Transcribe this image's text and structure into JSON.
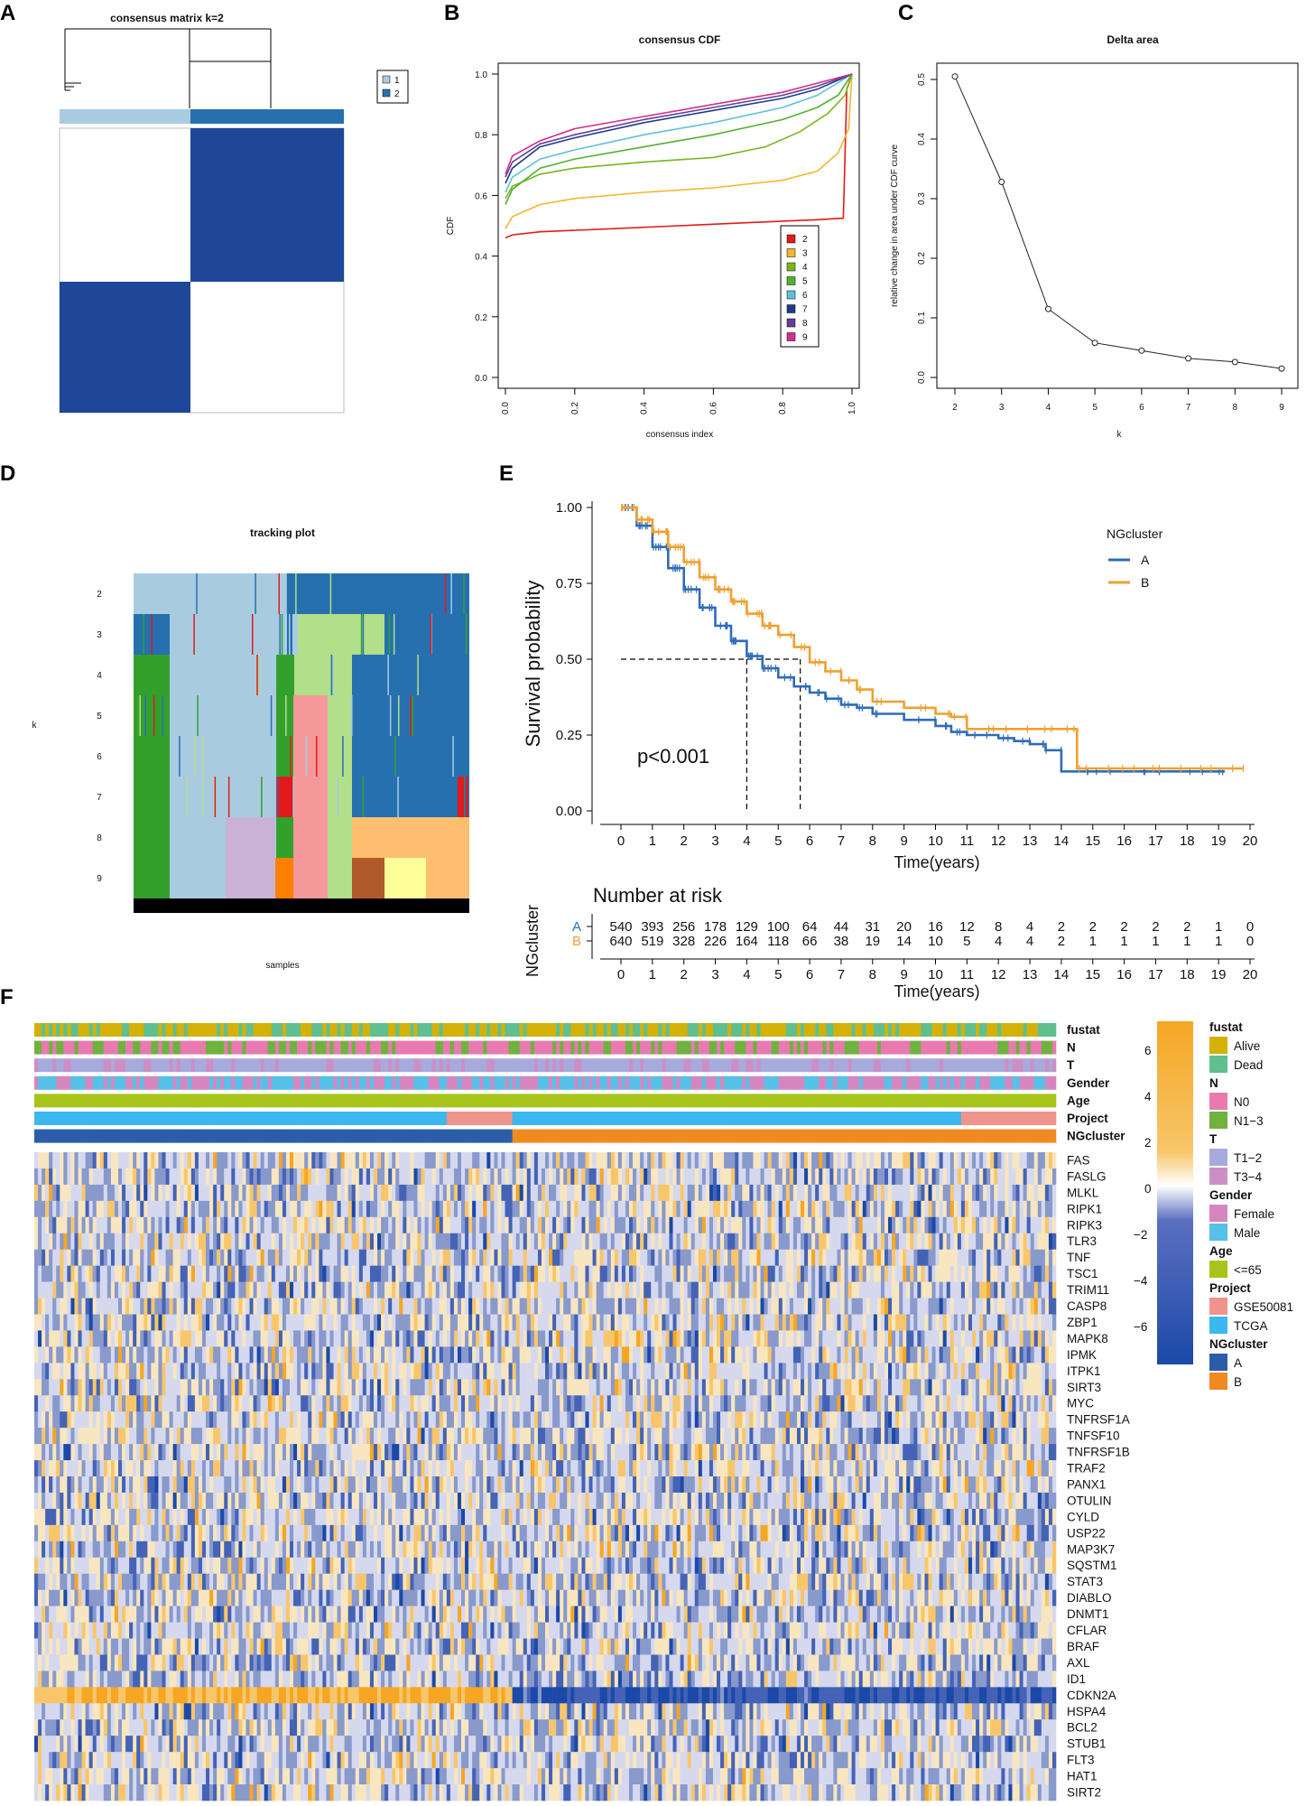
{
  "panels": {
    "A": "A",
    "B": "B",
    "C": "C",
    "D": "D",
    "E": "E",
    "F": "F"
  },
  "colors": {
    "dark_blue": "#1e4799",
    "light_blue": "#a9cbe0",
    "mid_blue": "#2670b0",
    "orange": "#f0a030",
    "blue_km": "#2f6cb8"
  },
  "chart_data": [
    {
      "panel": "A",
      "type": "heatmap",
      "title": "consensus matrix k=2",
      "legend": [
        {
          "label": "1",
          "color": "#a9cbe0"
        },
        {
          "label": "2",
          "color": "#2670b0"
        }
      ],
      "matrix": [
        [
          0,
          1
        ],
        [
          1,
          0
        ]
      ],
      "cluster_fraction": [
        0.46,
        0.54
      ]
    },
    {
      "panel": "B",
      "type": "line",
      "title": "consensus CDF",
      "xlabel": "consensus index",
      "ylabel": "CDF",
      "xlim": [
        0,
        1
      ],
      "ylim": [
        0,
        1
      ],
      "xticks": [
        "0.0",
        "0.2",
        "0.4",
        "0.6",
        "0.8",
        "1.0"
      ],
      "yticks": [
        "0.0",
        "0.2",
        "0.4",
        "0.6",
        "0.8",
        "1.0"
      ],
      "series": [
        {
          "name": "2",
          "color": "#e41a1c",
          "x": [
            0,
            0.02,
            0.1,
            0.3,
            0.5,
            0.7,
            0.9,
            0.975,
            0.985,
            1.0
          ],
          "y": [
            0.46,
            0.47,
            0.48,
            0.49,
            0.5,
            0.51,
            0.52,
            0.525,
            0.95,
            1.0
          ]
        },
        {
          "name": "3",
          "color": "#f2b630",
          "x": [
            0,
            0.02,
            0.1,
            0.2,
            0.4,
            0.6,
            0.8,
            0.9,
            0.96,
            0.99,
            1.0
          ],
          "y": [
            0.49,
            0.53,
            0.57,
            0.59,
            0.61,
            0.625,
            0.65,
            0.68,
            0.74,
            0.82,
            1.0
          ]
        },
        {
          "name": "4",
          "color": "#7cb420",
          "x": [
            0,
            0.02,
            0.1,
            0.2,
            0.4,
            0.6,
            0.75,
            0.85,
            0.93,
            0.98,
            1.0
          ],
          "y": [
            0.59,
            0.63,
            0.67,
            0.69,
            0.71,
            0.725,
            0.76,
            0.81,
            0.87,
            0.93,
            1.0
          ]
        },
        {
          "name": "5",
          "color": "#55b030",
          "x": [
            0,
            0.02,
            0.1,
            0.2,
            0.4,
            0.6,
            0.8,
            0.9,
            0.96,
            1.0
          ],
          "y": [
            0.57,
            0.62,
            0.69,
            0.72,
            0.76,
            0.8,
            0.85,
            0.89,
            0.93,
            1.0
          ]
        },
        {
          "name": "6",
          "color": "#60c0d8",
          "x": [
            0,
            0.02,
            0.1,
            0.2,
            0.4,
            0.6,
            0.8,
            0.9,
            1.0
          ],
          "y": [
            0.61,
            0.66,
            0.72,
            0.75,
            0.8,
            0.84,
            0.89,
            0.93,
            1.0
          ]
        },
        {
          "name": "7",
          "color": "#1e3c8c",
          "x": [
            0,
            0.02,
            0.1,
            0.2,
            0.4,
            0.6,
            0.8,
            0.9,
            1.0
          ],
          "y": [
            0.64,
            0.69,
            0.76,
            0.79,
            0.84,
            0.88,
            0.92,
            0.95,
            1.0
          ]
        },
        {
          "name": "8",
          "color": "#6a3d9a",
          "x": [
            0,
            0.02,
            0.1,
            0.2,
            0.4,
            0.6,
            0.8,
            0.9,
            1.0
          ],
          "y": [
            0.66,
            0.71,
            0.77,
            0.8,
            0.85,
            0.89,
            0.93,
            0.96,
            1.0
          ]
        },
        {
          "name": "9",
          "color": "#d0308c",
          "x": [
            0,
            0.02,
            0.1,
            0.2,
            0.4,
            0.6,
            0.8,
            0.9,
            1.0
          ],
          "y": [
            0.67,
            0.73,
            0.78,
            0.82,
            0.86,
            0.9,
            0.94,
            0.97,
            1.0
          ]
        }
      ]
    },
    {
      "panel": "C",
      "type": "line",
      "title": "Delta area",
      "xlabel": "k",
      "ylabel": "relative change in area under CDF curve",
      "x": [
        2,
        3,
        4,
        5,
        6,
        7,
        8,
        9
      ],
      "values": [
        0.505,
        0.328,
        0.115,
        0.058,
        0.045,
        0.032,
        0.026,
        0.015
      ],
      "ylim": [
        0,
        0.5
      ],
      "yticks": [
        "0.0",
        "0.1",
        "0.2",
        "0.3",
        "0.4",
        "0.5"
      ],
      "xticks": [
        "2",
        "3",
        "4",
        "5",
        "6",
        "7",
        "8",
        "9"
      ]
    },
    {
      "panel": "D",
      "type": "heatmap",
      "title": "tracking plot",
      "xlabel": "samples",
      "ylabel": "k",
      "rows": [
        "2",
        "3",
        "4",
        "5",
        "6",
        "7",
        "8",
        "9"
      ]
    },
    {
      "panel": "E",
      "type": "line",
      "title": "",
      "xlabel": "Time(years)",
      "ylabel": "Survival probability",
      "legend_title": "NGcluster",
      "p_value": "p<0.001",
      "xlim": [
        0,
        20
      ],
      "ylim": [
        0,
        1
      ],
      "xticks": [
        "0",
        "1",
        "2",
        "3",
        "4",
        "5",
        "6",
        "7",
        "8",
        "9",
        "10",
        "11",
        "12",
        "13",
        "14",
        "15",
        "16",
        "17",
        "18",
        "19",
        "20"
      ],
      "yticks": [
        "0.00",
        "0.25",
        "0.50",
        "0.75",
        "1.00"
      ],
      "median_survival": {
        "A": 4.0,
        "B": 5.7
      },
      "series": [
        {
          "name": "A",
          "color": "#2f6cb8",
          "x": [
            0,
            0.5,
            1,
            1.5,
            2,
            2.5,
            3,
            3.5,
            4,
            4.5,
            5,
            5.5,
            6,
            6.5,
            7,
            7.5,
            8,
            9,
            10,
            10.5,
            11,
            12,
            12.5,
            13,
            13.5,
            14,
            15,
            16,
            17,
            18,
            19,
            19.2
          ],
          "y": [
            1.0,
            0.94,
            0.87,
            0.8,
            0.73,
            0.67,
            0.61,
            0.56,
            0.51,
            0.47,
            0.44,
            0.41,
            0.39,
            0.37,
            0.35,
            0.34,
            0.32,
            0.3,
            0.28,
            0.26,
            0.25,
            0.24,
            0.23,
            0.22,
            0.2,
            0.13,
            0.13,
            0.13,
            0.13,
            0.13,
            0.13,
            0.13
          ]
        },
        {
          "name": "B",
          "color": "#f0a030",
          "x": [
            0,
            0.5,
            1,
            1.5,
            2,
            2.5,
            3,
            3.5,
            4,
            4.5,
            5,
            5.5,
            6,
            6.5,
            7,
            7.5,
            8,
            9,
            10,
            10.5,
            11,
            12,
            13,
            14,
            14.5,
            15,
            16,
            17,
            18,
            19,
            19.8
          ],
          "y": [
            1.0,
            0.96,
            0.92,
            0.87,
            0.82,
            0.77,
            0.73,
            0.69,
            0.65,
            0.61,
            0.58,
            0.54,
            0.49,
            0.46,
            0.43,
            0.4,
            0.36,
            0.34,
            0.32,
            0.31,
            0.27,
            0.27,
            0.27,
            0.27,
            0.14,
            0.14,
            0.14,
            0.14,
            0.14,
            0.14,
            0.14
          ]
        }
      ],
      "risk_table": {
        "title": "Number at risk",
        "ylabel": "NGcluster",
        "xlabel": "Time(years)",
        "rows": [
          {
            "name": "A",
            "values": [
              "540",
              "393",
              "256",
              "178",
              "129",
              "100",
              "64",
              "44",
              "31",
              "20",
              "16",
              "12",
              "8",
              "4",
              "2",
              "2",
              "2",
              "2",
              "2",
              "1",
              "0"
            ]
          },
          {
            "name": "B",
            "values": [
              "640",
              "519",
              "328",
              "226",
              "164",
              "118",
              "66",
              "38",
              "19",
              "14",
              "10",
              "5",
              "4",
              "4",
              "2",
              "1",
              "1",
              "1",
              "1",
              "1",
              "0"
            ]
          }
        ]
      }
    },
    {
      "panel": "F",
      "type": "heatmap",
      "annotation_rows": [
        "fustat",
        "N",
        "T",
        "Gender",
        "Age",
        "Project",
        "NGcluster"
      ],
      "genes": [
        "FAS",
        "FASLG",
        "MLKL",
        "RIPK1",
        "RIPK3",
        "TLR3",
        "TNF",
        "TSC1",
        "TRIM11",
        "CASP8",
        "ZBP1",
        "MAPK8",
        "IPMK",
        "ITPK1",
        "SIRT3",
        "MYC",
        "TNFRSF1A",
        "TNFSF10",
        "TNFRSF1B",
        "TRAF2",
        "PANX1",
        "OTULIN",
        "CYLD",
        "USP22",
        "MAP3K7",
        "SQSTM1",
        "STAT3",
        "DIABLO",
        "DNMT1",
        "CFLAR",
        "BRAF",
        "AXL",
        "ID1",
        "CDKN2A",
        "HSPA4",
        "BCL2",
        "STUB1",
        "FLT3",
        "HAT1",
        "SIRT2"
      ],
      "colorbar_ticks": [
        "6",
        "4",
        "2",
        "0",
        "−2",
        "−4",
        "−6"
      ],
      "legend": [
        {
          "title": "fustat",
          "items": [
            {
              "label": "Alive",
              "color": "#d4b106"
            },
            {
              "label": "Dead",
              "color": "#5fbf8f"
            }
          ]
        },
        {
          "title": "N",
          "items": [
            {
              "label": "N0",
              "color": "#e87ab0"
            },
            {
              "label": "N1−3",
              "color": "#6fb23e"
            }
          ]
        },
        {
          "title": "T",
          "items": [
            {
              "label": "T1−2",
              "color": "#a7aadd"
            },
            {
              "label": "T3−4",
              "color": "#cc8fc4"
            }
          ]
        },
        {
          "title": "Gender",
          "items": [
            {
              "label": "Female",
              "color": "#d686bf"
            },
            {
              "label": "Male",
              "color": "#55c1e6"
            }
          ]
        },
        {
          "title": "Age",
          "items": [
            {
              "label": "<=65",
              "color": "#a6c41a"
            }
          ]
        },
        {
          "title": "Project",
          "items": [
            {
              "label": "GSE50081",
              "color": "#f0938a"
            },
            {
              "label": "TCGA",
              "color": "#3ab8ef"
            }
          ]
        },
        {
          "title": "NGcluster",
          "items": [
            {
              "label": "A",
              "color": "#2a5ca8"
            },
            {
              "label": "B",
              "color": "#f08a20"
            }
          ]
        }
      ]
    }
  ]
}
